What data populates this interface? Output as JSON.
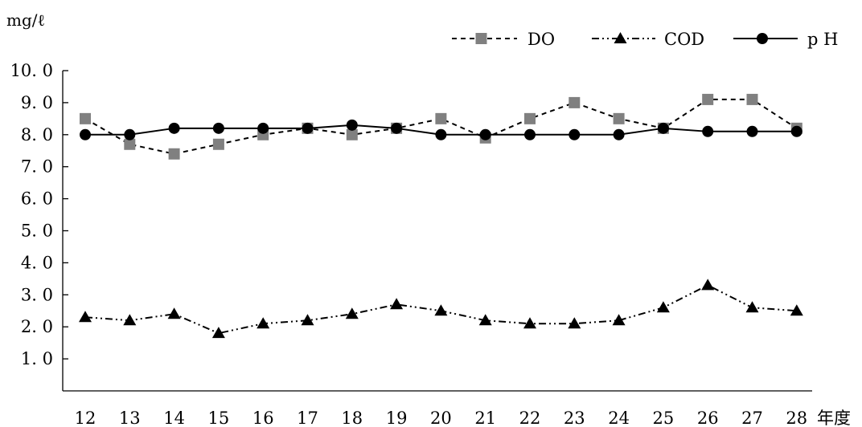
{
  "chart_data": {
    "type": "line",
    "ylabel": "mg/ℓ",
    "xlabel": "年度",
    "categories": [
      "12",
      "13",
      "14",
      "15",
      "16",
      "17",
      "18",
      "19",
      "20",
      "21",
      "22",
      "23",
      "24",
      "25",
      "26",
      "27",
      "28"
    ],
    "y_tick_labels": [
      "10. 0",
      "9. 0",
      "8. 0",
      "7. 0",
      "6. 0",
      "5. 0",
      "4. 0",
      "3. 0",
      "2. 0",
      "1. 0"
    ],
    "y_tick_values": [
      10,
      9,
      8,
      7,
      6,
      5,
      4,
      3,
      2,
      1
    ],
    "ylim": [
      0,
      10
    ],
    "grid": false,
    "legend_position": "top-right",
    "series": [
      {
        "name": "DO",
        "marker": "square",
        "line_style": "dashed",
        "color": "#808080",
        "line_color": "#000000",
        "values": [
          8.5,
          7.7,
          7.4,
          7.7,
          8.0,
          8.2,
          8.0,
          8.2,
          8.5,
          7.9,
          8.5,
          9.0,
          8.5,
          8.2,
          9.1,
          9.1,
          8.2
        ]
      },
      {
        "name": "COD",
        "marker": "triangle",
        "line_style": "dash-dot-dot",
        "color": "#000000",
        "line_color": "#000000",
        "values": [
          2.3,
          2.2,
          2.4,
          1.8,
          2.1,
          2.2,
          2.4,
          2.7,
          2.5,
          2.2,
          2.1,
          2.1,
          2.2,
          2.6,
          3.3,
          2.6,
          2.5
        ]
      },
      {
        "name": "p H",
        "marker": "circle",
        "line_style": "solid",
        "color": "#000000",
        "line_color": "#000000",
        "values": [
          8.0,
          8.0,
          8.2,
          8.2,
          8.2,
          8.2,
          8.3,
          8.2,
          8.0,
          8.0,
          8.0,
          8.0,
          8.0,
          8.2,
          8.1,
          8.1,
          8.1
        ]
      }
    ]
  }
}
